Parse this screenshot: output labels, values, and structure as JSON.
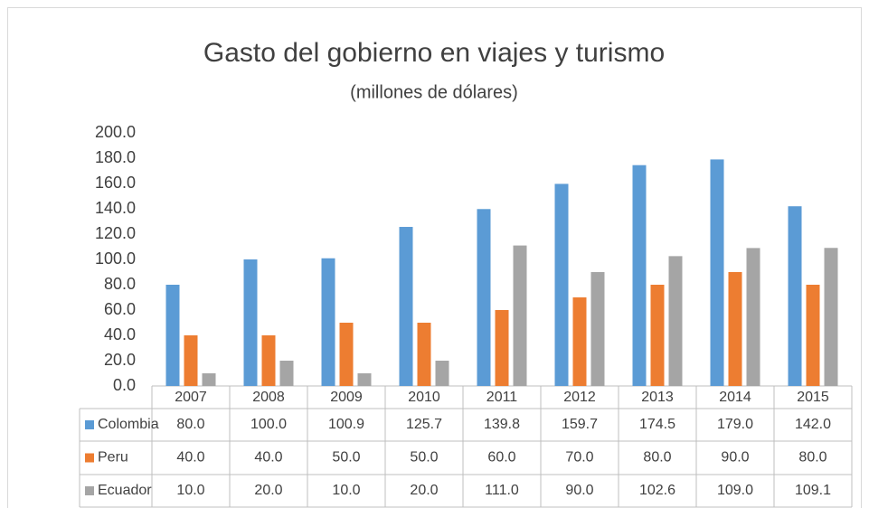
{
  "chart_data": {
    "type": "bar",
    "title": "Gasto del gobierno en viajes y turismo",
    "subtitle": "(millones de dólares)",
    "categories": [
      "2007",
      "2008",
      "2009",
      "2010",
      "2011",
      "2012",
      "2013",
      "2014",
      "2015"
    ],
    "series": [
      {
        "name": "Colombia",
        "color": "#5b9bd5",
        "values": [
          80,
          100,
          100.9,
          125.7,
          139.8,
          159.7,
          174.5,
          179,
          142
        ],
        "value_labels": [
          "80.0",
          "100.0",
          "100.9",
          "125.7",
          "139.8",
          "159.7",
          "174.5",
          "179.0",
          "142.0"
        ]
      },
      {
        "name": "Peru",
        "color": "#ed7d31",
        "values": [
          40,
          40,
          50,
          50,
          60,
          70,
          80,
          90,
          80
        ],
        "value_labels": [
          "40.0",
          "40.0",
          "50.0",
          "50.0",
          "60.0",
          "70.0",
          "80.0",
          "90.0",
          "80.0"
        ]
      },
      {
        "name": "Ecuador",
        "color": "#a5a5a5",
        "values": [
          10,
          20,
          10,
          20,
          111,
          90,
          102.6,
          109,
          109.1
        ],
        "value_labels": [
          "10.0",
          "20.0",
          "10.0",
          "20.0",
          "111.0",
          "90.0",
          "102.6",
          "109.0",
          "109.1"
        ]
      }
    ],
    "ylim": [
      0,
      200
    ],
    "yticks": [
      {
        "value": 0,
        "label": "0.0"
      },
      {
        "value": 20,
        "label": "20.0"
      },
      {
        "value": 40,
        "label": "40.0"
      },
      {
        "value": 60,
        "label": "60.0"
      },
      {
        "value": 80,
        "label": "80.0"
      },
      {
        "value": 100,
        "label": "100.0"
      },
      {
        "value": 120,
        "label": "120.0"
      },
      {
        "value": 140,
        "label": "140.0"
      },
      {
        "value": 160,
        "label": "160.0"
      },
      {
        "value": 180,
        "label": "180.0"
      },
      {
        "value": 200,
        "label": "200.0"
      }
    ]
  }
}
